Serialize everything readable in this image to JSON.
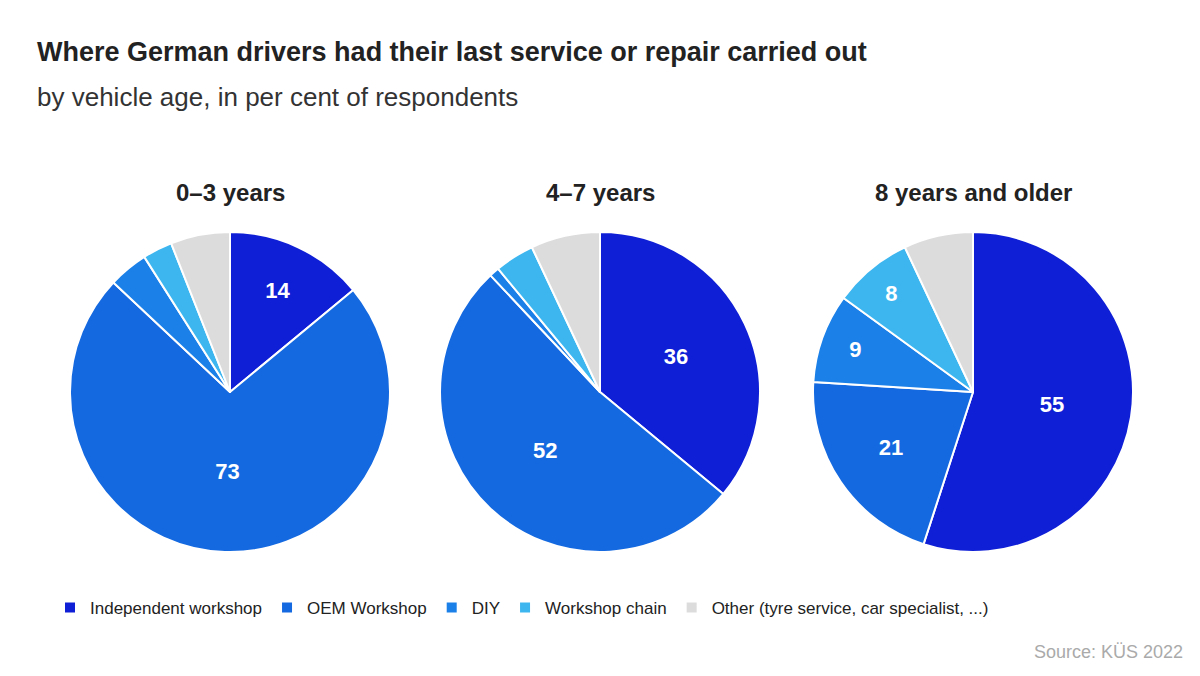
{
  "title": "Where German drivers had their last service or repair carried out",
  "subtitle": "by vehicle age, in per cent of respondents",
  "source": "Source: KÜS 2022",
  "legend": "bottom",
  "chart_data": [
    {
      "type": "pie",
      "title": "0–3 years",
      "categories": [
        "Independent workshop",
        "OEM Workshop",
        "DIY",
        "Workshop chain",
        "Other (tyre service, car specialist, ...)"
      ],
      "values": [
        14,
        73,
        4,
        3,
        6
      ],
      "value_labels": [
        "14",
        "73",
        null,
        null,
        null
      ],
      "colors": [
        "#0f1fd6",
        "#1469e0",
        "#1b80e8",
        "#3db6f0",
        "#dcdcdc"
      ],
      "data_labels": true
    },
    {
      "type": "pie",
      "title": "4–7 years",
      "categories": [
        "Independent workshop",
        "OEM Workshop",
        "DIY",
        "Workshop chain",
        "Other (tyre service, car specialist, ...)"
      ],
      "values": [
        36,
        52,
        1,
        4,
        7
      ],
      "value_labels": [
        "36",
        "52",
        null,
        null,
        null
      ],
      "colors": [
        "#0f1fd6",
        "#1469e0",
        "#1b80e8",
        "#3db6f0",
        "#dcdcdc"
      ],
      "data_labels": true
    },
    {
      "type": "pie",
      "title": "8 years and older",
      "categories": [
        "Independent workshop",
        "OEM Workshop",
        "DIY",
        "Workshop chain",
        "Other (tyre service, car specialist, ...)"
      ],
      "values": [
        55,
        21,
        9,
        8,
        7
      ],
      "value_labels": [
        "55",
        "21",
        "9",
        "8",
        null
      ],
      "colors": [
        "#0f1fd6",
        "#1469e0",
        "#1b80e8",
        "#3db6f0",
        "#dcdcdc"
      ],
      "data_labels": true
    }
  ]
}
